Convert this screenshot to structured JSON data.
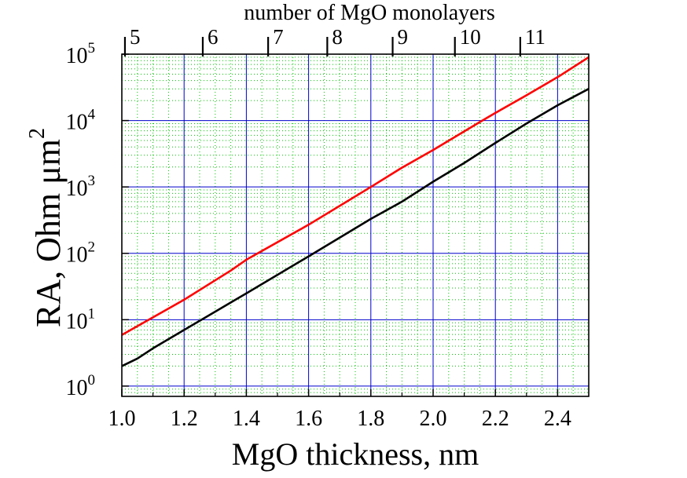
{
  "chart_data": {
    "type": "line",
    "xlabel": "MgO thickness, nm",
    "ylabel_main": "RA, Ohm μm",
    "ylabel_sup": "2",
    "top_axis_label": "number of MgO monolayers",
    "xlim": [
      1.0,
      2.5
    ],
    "ylim": [
      0.7,
      100000
    ],
    "yscale": "log",
    "grid": true,
    "x_ticks": [
      "1.0",
      "1.2",
      "1.4",
      "1.6",
      "1.8",
      "2.0",
      "2.2",
      "2.4"
    ],
    "x_tick_values": [
      1.0,
      1.2,
      1.4,
      1.6,
      1.8,
      2.0,
      2.2,
      2.4
    ],
    "y_ticks": [
      {
        "base": "10",
        "exp": "0",
        "value": 1
      },
      {
        "base": "10",
        "exp": "1",
        "value": 10
      },
      {
        "base": "10",
        "exp": "2",
        "value": 100
      },
      {
        "base": "10",
        "exp": "3",
        "value": 1000
      },
      {
        "base": "10",
        "exp": "4",
        "value": 10000
      },
      {
        "base": "10",
        "exp": "5",
        "value": 100000
      }
    ],
    "top_ticks": [
      {
        "label": "5",
        "thickness": 1.01
      },
      {
        "label": "6",
        "thickness": 1.26
      },
      {
        "label": "7",
        "thickness": 1.47
      },
      {
        "label": "8",
        "thickness": 1.66
      },
      {
        "label": "9",
        "thickness": 1.87
      },
      {
        "label": "10",
        "thickness": 2.07
      },
      {
        "label": "11",
        "thickness": 2.28
      }
    ],
    "series": [
      {
        "color": "#ff0000",
        "x": [
          1.0,
          1.2,
          1.35,
          1.4,
          1.6,
          1.8,
          1.9,
          2.0,
          2.15,
          2.2,
          2.3,
          2.4,
          2.5
        ],
        "y": [
          5.9,
          20,
          55,
          80,
          270,
          1000,
          1950,
          3600,
          9500,
          13000,
          24000,
          45000,
          90000
        ]
      },
      {
        "color": "#000000",
        "x": [
          1.0,
          1.05,
          1.1,
          1.2,
          1.4,
          1.6,
          1.8,
          1.9,
          2.0,
          2.1,
          2.2,
          2.3,
          2.4,
          2.5
        ],
        "y": [
          2.0,
          2.6,
          3.7,
          7.0,
          25,
          90,
          330,
          600,
          1200,
          2300,
          4600,
          9000,
          17000,
          30000
        ]
      }
    ],
    "colors": {
      "major_grid": "#0000cc",
      "minor_grid": "#00c000",
      "axis": "#000000"
    }
  }
}
